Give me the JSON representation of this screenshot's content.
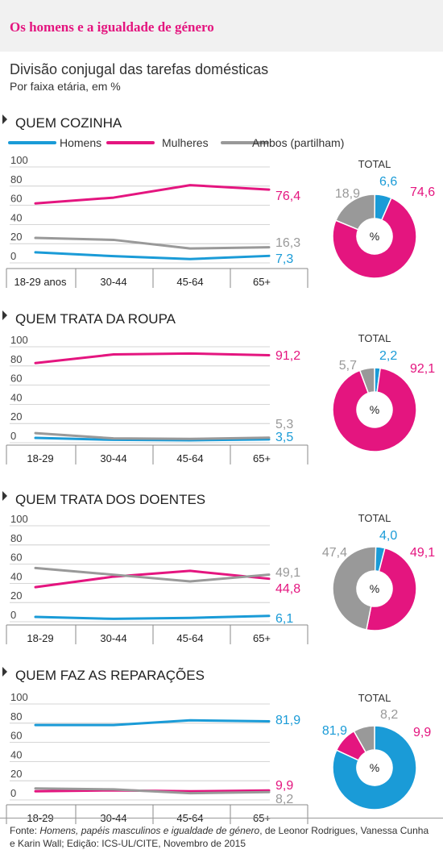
{
  "header": {
    "title": "Os homens e a igualdade de género"
  },
  "subtitle": {
    "line1": "Divisão conjugal das tarefas domésticas",
    "line2": "Por faixa etária, em %"
  },
  "colors": {
    "homens": "#1a9bd7",
    "mulheres": "#e4157f",
    "ambos": "#999999"
  },
  "legend": {
    "homens": "Homens",
    "mulheres": "Mulheres",
    "ambos": "Ambos (partilham)"
  },
  "donut_center": "%",
  "total_label": "TOTAL",
  "chart_data": [
    {
      "type": "line",
      "title": "QUEM COZINHA",
      "categories": [
        "18-29 anos",
        "30-44",
        "45-64",
        "65+"
      ],
      "ylim": [
        0,
        100
      ],
      "yticks": [
        0,
        20,
        40,
        60,
        80,
        100
      ],
      "series": [
        {
          "name": "Homens",
          "key": "homens",
          "values": [
            11,
            7,
            4,
            7.3
          ],
          "end_label": "7,3"
        },
        {
          "name": "Mulheres",
          "key": "mulheres",
          "values": [
            62,
            68,
            81,
            76.4
          ],
          "end_label": "76,4"
        },
        {
          "name": "Ambos (partilham)",
          "key": "ambos",
          "values": [
            26,
            24,
            15,
            16.3
          ],
          "end_label": "16,3"
        }
      ],
      "total": {
        "type": "pie",
        "homens": 6.6,
        "mulheres": 74.6,
        "ambos": 18.9,
        "labels": {
          "homens": "6,6",
          "mulheres": "74,6",
          "ambos": "18,9"
        }
      }
    },
    {
      "type": "line",
      "title": "QUEM TRATA DA ROUPA",
      "categories": [
        "18-29",
        "30-44",
        "45-64",
        "65+"
      ],
      "ylim": [
        0,
        100
      ],
      "yticks": [
        0,
        20,
        40,
        60,
        80,
        100
      ],
      "series": [
        {
          "name": "Homens",
          "key": "homens",
          "values": [
            5,
            3,
            2.5,
            3.5
          ],
          "end_label": "3,5"
        },
        {
          "name": "Mulheres",
          "key": "mulheres",
          "values": [
            83,
            92,
            93,
            91.2
          ],
          "end_label": "91,2"
        },
        {
          "name": "Ambos (partilham)",
          "key": "ambos",
          "values": [
            10,
            4.5,
            4,
            5.3
          ],
          "end_label": "5,3"
        }
      ],
      "total": {
        "type": "pie",
        "homens": 2.2,
        "mulheres": 92.1,
        "ambos": 5.7,
        "labels": {
          "homens": "2,2",
          "mulheres": "92,1",
          "ambos": "5,7"
        }
      }
    },
    {
      "type": "line",
      "title": "QUEM TRATA DOS DOENTES",
      "categories": [
        "18-29",
        "30-44",
        "45-64",
        "65+"
      ],
      "ylim": [
        0,
        100
      ],
      "yticks": [
        0,
        20,
        40,
        60,
        80,
        100
      ],
      "series": [
        {
          "name": "Homens",
          "key": "homens",
          "values": [
            5,
            3,
            4,
            6.1
          ],
          "end_label": "6,1"
        },
        {
          "name": "Mulheres",
          "key": "mulheres",
          "values": [
            36,
            47,
            53,
            44.8
          ],
          "end_label": "44,8"
        },
        {
          "name": "Ambos (partilham)",
          "key": "ambos",
          "values": [
            56,
            49,
            42,
            49.1
          ],
          "end_label": "49,1"
        }
      ],
      "total": {
        "type": "pie",
        "homens": 4.0,
        "mulheres": 49.1,
        "ambos": 47.4,
        "labels": {
          "homens": "4,0",
          "mulheres": "49,1",
          "ambos": "47,4"
        }
      }
    },
    {
      "type": "line",
      "title": "QUEM FAZ AS REPARAÇÕES",
      "categories": [
        "18-29",
        "30-44",
        "45-64",
        "65+"
      ],
      "ylim": [
        0,
        100
      ],
      "yticks": [
        0,
        20,
        40,
        60,
        80,
        100
      ],
      "series": [
        {
          "name": "Homens",
          "key": "homens",
          "values": [
            78,
            78,
            83,
            81.9
          ],
          "end_label": "81,9"
        },
        {
          "name": "Mulheres",
          "key": "mulheres",
          "values": [
            9,
            10,
            9,
            9.9
          ],
          "end_label": "9,9"
        },
        {
          "name": "Ambos (partilham)",
          "key": "ambos",
          "values": [
            12,
            11,
            7,
            8.2
          ],
          "end_label": "8,2"
        }
      ],
      "total": {
        "type": "pie",
        "homens": 81.9,
        "mulheres": 9.9,
        "ambos": 8.2,
        "labels": {
          "homens": "81,9",
          "mulheres": "9,9",
          "ambos": "8,2"
        }
      }
    }
  ],
  "footer": {
    "prefix": "Fonte: ",
    "source_title": "Homens, papéis masculinos e igualdade de género",
    "suffix": ", de Leonor Rodrigues, Vanessa Cunha e Karin Wall; Edição: ICS-UL/CITE, Novembro de 2015"
  }
}
